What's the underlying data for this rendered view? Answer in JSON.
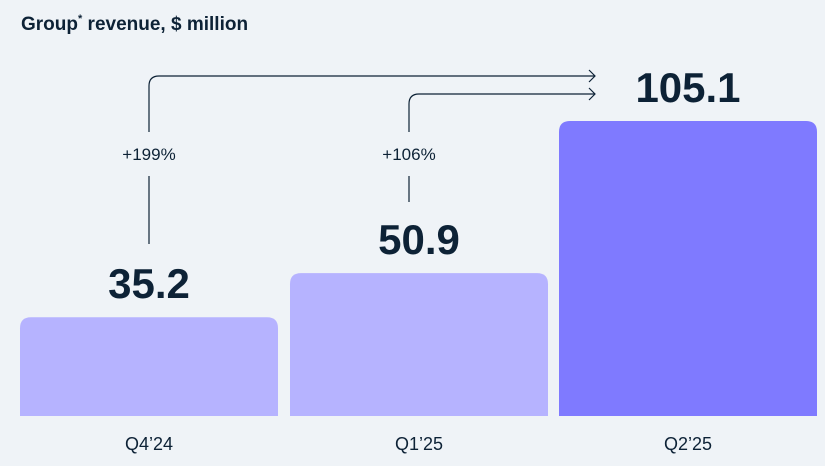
{
  "chart_data": {
    "type": "bar",
    "title": "Group",
    "title_marker": "*",
    "title_suffix": " revenue, $ million",
    "categories": [
      "Q4’24",
      "Q1’25",
      "Q2’25"
    ],
    "values": [
      35.2,
      50.9,
      105.1
    ],
    "value_labels": [
      "35.2",
      "50.9",
      "105.1"
    ],
    "bar_colors": [
      "#b6b3ff",
      "#b6b3ff",
      "#7f7aff"
    ],
    "growth_annotations": [
      {
        "label": "+199%",
        "from": "Q4’24",
        "to": "Q2’25"
      },
      {
        "label": "+106%",
        "from": "Q1’25",
        "to": "Q2’25"
      }
    ],
    "ylim": [
      0,
      110
    ],
    "grid": false,
    "xlabel": "",
    "ylabel": ""
  }
}
